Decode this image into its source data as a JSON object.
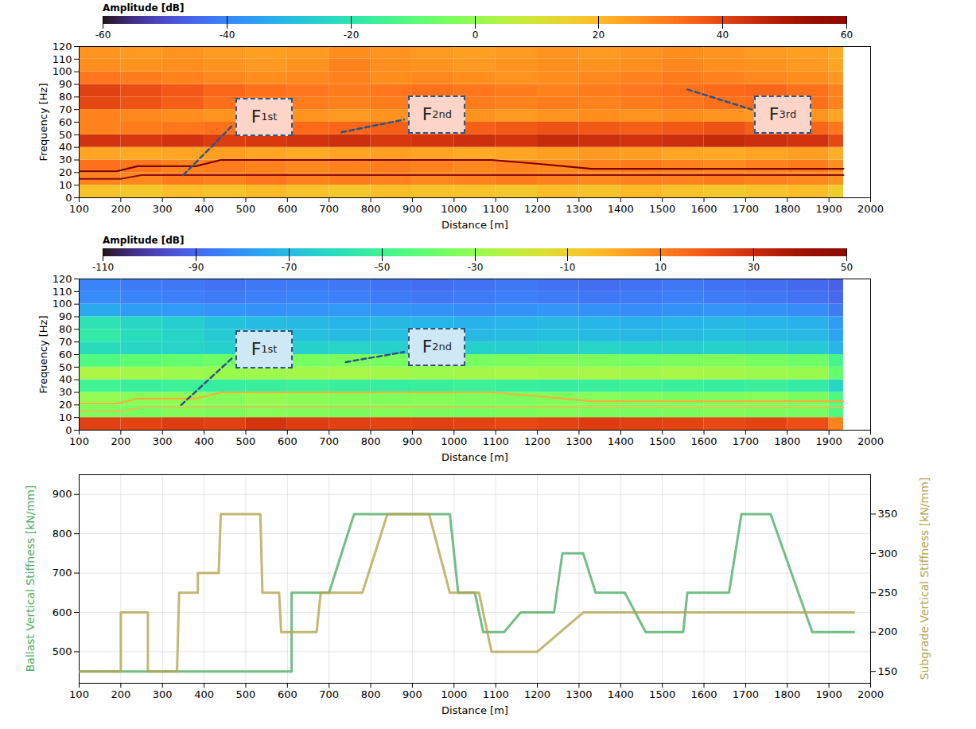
{
  "chart_data": [
    {
      "type": "heatmap",
      "xlabel": "Distance [m]",
      "ylabel": "Frequency [Hz]",
      "xlim": [
        100,
        2000
      ],
      "xticks": [
        100,
        200,
        300,
        400,
        500,
        600,
        700,
        800,
        900,
        1000,
        1100,
        1200,
        1300,
        1400,
        1500,
        1600,
        1700,
        1800,
        1900,
        2000
      ],
      "ylim": [
        0,
        120
      ],
      "yticks": [
        0,
        10,
        20,
        30,
        40,
        50,
        60,
        70,
        80,
        90,
        100,
        110,
        120
      ],
      "zlabel": "Amplitude [dB]",
      "zlim": [
        -60,
        60
      ],
      "zticks": [
        -60,
        -40,
        -20,
        0,
        20,
        40,
        60
      ],
      "x_edges": [
        100,
        200,
        300,
        400,
        500,
        600,
        700,
        800,
        900,
        1000,
        1100,
        1200,
        1300,
        1400,
        1500,
        1600,
        1700,
        1800,
        1900,
        1935
      ],
      "y_edges": [
        0,
        10,
        20,
        30,
        40,
        50,
        60,
        70,
        80,
        90,
        100,
        110,
        120
      ],
      "z": [
        [
          18,
          17,
          19,
          18,
          20,
          18,
          17,
          19,
          18,
          18,
          17,
          19,
          18,
          20,
          18,
          17,
          18,
          19,
          16
        ],
        [
          30,
          29,
          31,
          30,
          32,
          30,
          31,
          30,
          29,
          30,
          31,
          30,
          29,
          30,
          30,
          31,
          30,
          29,
          27
        ],
        [
          33,
          32,
          30,
          31,
          30,
          29,
          30,
          31,
          30,
          29,
          30,
          29,
          30,
          31,
          30,
          29,
          30,
          31,
          28
        ],
        [
          24,
          23,
          24,
          25,
          24,
          23,
          24,
          25,
          24,
          23,
          24,
          25,
          26,
          25,
          24,
          23,
          24,
          25,
          22
        ],
        [
          44,
          43,
          44,
          42,
          43,
          44,
          45,
          43,
          44,
          45,
          44,
          46,
          45,
          44,
          45,
          46,
          45,
          44,
          40
        ],
        [
          30,
          31,
          32,
          33,
          35,
          34,
          35,
          36,
          35,
          36,
          37,
          38,
          37,
          36,
          37,
          38,
          36,
          35,
          32
        ],
        [
          30,
          29,
          28,
          27,
          28,
          27,
          26,
          27,
          28,
          27,
          26,
          27,
          28,
          27,
          28,
          27,
          26,
          27,
          24
        ],
        [
          40,
          38,
          36,
          33,
          32,
          31,
          30,
          31,
          32,
          31,
          30,
          31,
          30,
          31,
          32,
          33,
          34,
          33,
          30
        ],
        [
          41,
          39,
          37,
          35,
          33,
          32,
          31,
          32,
          33,
          32,
          31,
          30,
          31,
          32,
          33,
          34,
          35,
          33,
          30
        ],
        [
          32,
          31,
          30,
          29,
          28,
          29,
          30,
          28,
          29,
          28,
          27,
          28,
          29,
          30,
          31,
          30,
          29,
          28,
          26
        ],
        [
          28,
          27,
          28,
          27,
          26,
          27,
          30,
          28,
          27,
          26,
          27,
          28,
          27,
          28,
          29,
          28,
          27,
          26,
          24
        ],
        [
          27,
          26,
          27,
          26,
          25,
          26,
          28,
          27,
          26,
          25,
          26,
          27,
          26,
          27,
          28,
          27,
          26,
          25,
          23
        ]
      ],
      "series": [
        {
          "type": "line",
          "color": "#7a0000",
          "x": [
            100,
            190,
            240,
            380,
            440,
            1090,
            1200,
            1330,
            1935
          ],
          "values": [
            21,
            21,
            25,
            25,
            30,
            30,
            27,
            23,
            23
          ]
        },
        {
          "type": "line",
          "color": "#8b1010",
          "x": [
            100,
            200,
            250,
            1935
          ],
          "values": [
            15,
            15,
            18,
            18
          ]
        }
      ],
      "annotations": [
        {
          "text": "F",
          "subscript": "1st",
          "x": 545,
          "y": 64,
          "color": "#fcd5c8",
          "arrow_from": [
            350,
            18
          ],
          "arrow_to": [
            470,
            58
          ]
        },
        {
          "text": "F",
          "subscript": "2nd",
          "x": 960,
          "y": 66,
          "color": "#fcd5c8",
          "arrow_from": [
            730,
            52
          ],
          "arrow_to": [
            880,
            62
          ]
        },
        {
          "text": "F",
          "subscript": "3rd",
          "x": 1790,
          "y": 66,
          "color": "#fcd5c8",
          "arrow_from": [
            1560,
            86
          ],
          "arrow_to": [
            1715,
            70
          ]
        }
      ]
    },
    {
      "type": "heatmap",
      "xlabel": "Distance [m]",
      "ylabel": "Frequency [Hz]",
      "xlim": [
        100,
        2000
      ],
      "xticks": [
        100,
        200,
        300,
        400,
        500,
        600,
        700,
        800,
        900,
        1000,
        1100,
        1200,
        1300,
        1400,
        1500,
        1600,
        1700,
        1800,
        1900,
        2000
      ],
      "ylim": [
        0,
        120
      ],
      "yticks": [
        0,
        10,
        20,
        30,
        40,
        50,
        60,
        70,
        80,
        90,
        100,
        110,
        120
      ],
      "zlabel": "Amplitude [dB]",
      "zlim": [
        -110,
        50
      ],
      "zticks": [
        -110,
        -90,
        -70,
        -50,
        -30,
        -10,
        10,
        30,
        50
      ],
      "x_edges": [
        100,
        200,
        300,
        400,
        500,
        600,
        700,
        800,
        900,
        1000,
        1100,
        1200,
        1300,
        1400,
        1500,
        1600,
        1700,
        1800,
        1900,
        1935
      ],
      "y_edges": [
        0,
        10,
        20,
        30,
        40,
        50,
        60,
        70,
        80,
        90,
        100,
        110,
        120
      ],
      "z": [
        [
          25,
          24,
          26,
          25,
          28,
          26,
          25,
          24,
          25,
          24,
          23,
          24,
          26,
          25,
          24,
          23,
          24,
          22,
          10
        ],
        [
          -35,
          -36,
          -34,
          -35,
          -33,
          -34,
          -35,
          -34,
          -35,
          -36,
          -35,
          -34,
          -35,
          -36,
          -35,
          -34,
          -35,
          -36,
          -45
        ],
        [
          -30,
          -32,
          -31,
          -33,
          -30,
          -32,
          -33,
          -34,
          -33,
          -34,
          -35,
          -34,
          -33,
          -34,
          -35,
          -34,
          -33,
          -35,
          -45
        ],
        [
          -50,
          -52,
          -51,
          -53,
          -52,
          -51,
          -52,
          -53,
          -52,
          -51,
          -52,
          -53,
          -52,
          -51,
          -52,
          -53,
          -52,
          -54,
          -62
        ],
        [
          -25,
          -27,
          -28,
          -29,
          -28,
          -27,
          -26,
          -27,
          -28,
          -27,
          -26,
          -27,
          -26,
          -27,
          -26,
          -27,
          -28,
          -29,
          -40
        ],
        [
          -45,
          -42,
          -40,
          -38,
          -37,
          -36,
          -35,
          -36,
          -35,
          -36,
          -35,
          -34,
          -35,
          -36,
          -35,
          -34,
          -36,
          -38,
          -48
        ],
        [
          -60,
          -62,
          -63,
          -64,
          -65,
          -64,
          -63,
          -64,
          -65,
          -64,
          -65,
          -64,
          -63,
          -64,
          -65,
          -64,
          -65,
          -66,
          -72
        ],
        [
          -55,
          -60,
          -63,
          -66,
          -68,
          -69,
          -70,
          -69,
          -70,
          -71,
          -70,
          -69,
          -70,
          -71,
          -70,
          -69,
          -70,
          -71,
          -76
        ],
        [
          -58,
          -62,
          -65,
          -68,
          -70,
          -71,
          -72,
          -71,
          -72,
          -73,
          -72,
          -71,
          -72,
          -73,
          -72,
          -71,
          -72,
          -73,
          -78
        ],
        [
          -75,
          -78,
          -79,
          -80,
          -81,
          -80,
          -79,
          -80,
          -81,
          -82,
          -81,
          -80,
          -81,
          -82,
          -81,
          -80,
          -81,
          -82,
          -86
        ],
        [
          -82,
          -84,
          -85,
          -86,
          -85,
          -84,
          -85,
          -86,
          -87,
          -86,
          -85,
          -86,
          -87,
          -86,
          -85,
          -86,
          -87,
          -88,
          -90
        ],
        [
          -84,
          -86,
          -87,
          -88,
          -87,
          -86,
          -87,
          -88,
          -89,
          -88,
          -87,
          -88,
          -89,
          -88,
          -87,
          -88,
          -89,
          -90,
          -92
        ]
      ],
      "series": [
        {
          "type": "line",
          "color": "#f2b13a",
          "x": [
            100,
            190,
            240,
            380,
            440,
            1090,
            1200,
            1330,
            1935
          ],
          "values": [
            21,
            21,
            25,
            25,
            30,
            30,
            27,
            23,
            23
          ]
        },
        {
          "type": "line",
          "color": "#e8c24a",
          "x": [
            100,
            200,
            250,
            1935
          ],
          "values": [
            15,
            15,
            18,
            18
          ]
        }
      ],
      "annotations": [
        {
          "text": "F",
          "subscript": "1st",
          "x": 545,
          "y": 64,
          "color": "#cfe8f5",
          "arrow_from": [
            345,
            20
          ],
          "arrow_to": [
            470,
            58
          ]
        },
        {
          "text": "F",
          "subscript": "2nd",
          "x": 960,
          "y": 66,
          "color": "#cfe8f5",
          "arrow_from": [
            740,
            54
          ],
          "arrow_to": [
            880,
            62
          ]
        }
      ]
    },
    {
      "type": "line",
      "xlabel": "Distance [m]",
      "ylabel": "Ballast Vertical Stiffness [kN/mm]",
      "y2label": "Subgrade Vertical Stiffness [kN/mm]",
      "xlim": [
        100,
        2000
      ],
      "xticks": [
        100,
        200,
        300,
        400,
        500,
        600,
        700,
        800,
        900,
        1000,
        1100,
        1200,
        1300,
        1400,
        1500,
        1600,
        1700,
        1800,
        1900,
        2000
      ],
      "ylim": [
        420,
        950
      ],
      "yticks": [
        500,
        600,
        700,
        800,
        900
      ],
      "y2lim": [
        135,
        400
      ],
      "y2ticks": [
        150,
        200,
        250,
        300,
        350
      ],
      "grid": true,
      "series": [
        {
          "color": "#4fae66",
          "x": [
            100,
            610,
            610,
            700,
            760,
            990,
            1010,
            1050,
            1070,
            1120,
            1160,
            1240,
            1260,
            1310,
            1340,
            1410,
            1460,
            1550,
            1560,
            1660,
            1690,
            1760,
            1860,
            1960
          ],
          "values": [
            450,
            450,
            650,
            650,
            850,
            850,
            650,
            650,
            550,
            550,
            600,
            600,
            750,
            750,
            650,
            650,
            550,
            550,
            650,
            650,
            850,
            850,
            550,
            550
          ]
        },
        {
          "color": "#b3a550",
          "axis": "y2",
          "x": [
            100,
            200,
            200,
            265,
            265,
            335,
            340,
            385,
            385,
            435,
            440,
            535,
            540,
            580,
            585,
            670,
            680,
            780,
            840,
            940,
            990,
            1060,
            1090,
            1200,
            1310,
            1960
          ],
          "values": [
            150,
            150,
            225,
            225,
            150,
            150,
            250,
            250,
            275,
            275,
            350,
            350,
            250,
            250,
            200,
            200,
            250,
            250,
            350,
            350,
            250,
            250,
            175,
            175,
            225,
            225
          ]
        }
      ]
    }
  ]
}
